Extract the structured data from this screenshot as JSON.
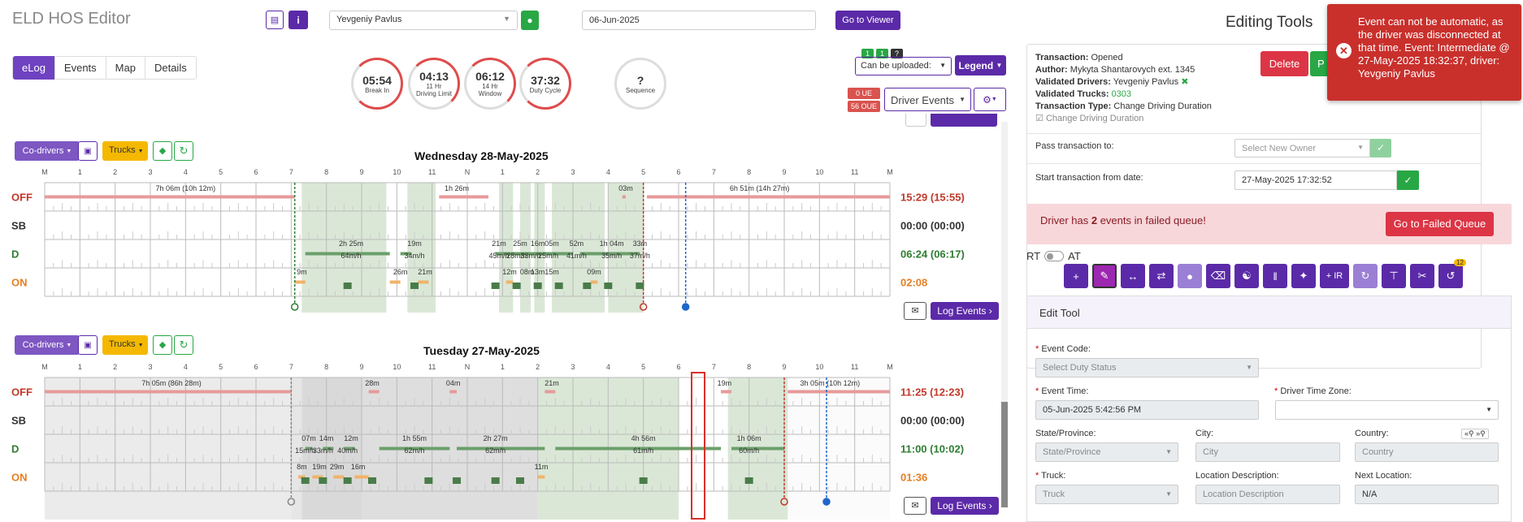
{
  "app_title": "ELD HOS Editor",
  "driver_select": "Yevgeniy Pavlus",
  "date_input": "06-Jun-2025",
  "go_to_viewer": "Go to Viewer",
  "tabs": [
    {
      "label": "eLog"
    },
    {
      "label": "Events"
    },
    {
      "label": "Map"
    },
    {
      "label": "Details"
    }
  ],
  "gauges": [
    {
      "value": "05:54",
      "label": "Break In",
      "label2": ""
    },
    {
      "value": "04:13",
      "label": "11 Hr",
      "label2": "Driving Limit"
    },
    {
      "value": "06:12",
      "label": "14 Hr",
      "label2": "Window"
    },
    {
      "value": "37:32",
      "label": "Duty Cycle",
      "label2": ""
    },
    {
      "value": "?",
      "label": "Sequence",
      "label2": ""
    }
  ],
  "upload_badges": [
    "1",
    "1",
    "?"
  ],
  "can_be_uploaded": "Can be uploaded:",
  "legend": "Legend",
  "ue_badge": "0 UE",
  "oue_badge": "56 OUE",
  "driver_events": "Driver Events",
  "co_drivers": "Co-drivers",
  "trucks": "Trucks",
  "log_events": "Log Events",
  "hour_labels": [
    "M",
    "1",
    "2",
    "3",
    "4",
    "5",
    "6",
    "7",
    "8",
    "9",
    "10",
    "11",
    "N",
    "1",
    "2",
    "3",
    "4",
    "5",
    "6",
    "7",
    "8",
    "9",
    "10",
    "11",
    "M"
  ],
  "status_labels": [
    "OFF",
    "SB",
    "D",
    "ON"
  ],
  "day1": {
    "title": "Wednesday 28-May-2025",
    "totals": [
      "15:29 (15:55)",
      "00:00 (00:00)",
      "06:24 (06:17)",
      "02:08"
    ],
    "annotations": [
      {
        "t": "7h 06m (10h 12m)",
        "h": 4.0,
        "r": 0
      },
      {
        "t": "1h 26m",
        "h": 11.7,
        "r": 0
      },
      {
        "t": "03m",
        "h": 16.5,
        "r": 0
      },
      {
        "t": "6h 51m (14h 27m)",
        "h": 20.3,
        "r": 0
      },
      {
        "t": "2h 25m",
        "h": 8.7,
        "r": 2
      },
      {
        "t": "64m/h",
        "h": 8.7,
        "r": 2.5
      },
      {
        "t": "19m",
        "h": 10.5,
        "r": 2
      },
      {
        "t": "34m/h",
        "h": 10.5,
        "r": 2.5
      },
      {
        "t": "21m",
        "h": 12.9,
        "r": 2
      },
      {
        "t": "25m",
        "h": 13.5,
        "r": 2
      },
      {
        "t": "16m",
        "h": 14.0,
        "r": 2
      },
      {
        "t": "05m",
        "h": 14.4,
        "r": 2
      },
      {
        "t": "52m",
        "h": 15.1,
        "r": 2
      },
      {
        "t": "1h 04m",
        "h": 16.1,
        "r": 2
      },
      {
        "t": "33m",
        "h": 16.9,
        "r": 2
      },
      {
        "t": "45m/h",
        "h": 12.9,
        "r": 2.5
      },
      {
        "t": "28m/h",
        "h": 13.4,
        "r": 2.5
      },
      {
        "t": "33m/h",
        "h": 13.8,
        "r": 2.5
      },
      {
        "t": "25m/h",
        "h": 14.3,
        "r": 2.5
      },
      {
        "t": "41m/h",
        "h": 15.1,
        "r": 2.5
      },
      {
        "t": "35m/h",
        "h": 16.1,
        "r": 2.5
      },
      {
        "t": "37m/h",
        "h": 16.9,
        "r": 2.5
      },
      {
        "t": "9m",
        "h": 7.3,
        "r": 3.2
      },
      {
        "t": "26m",
        "h": 10.1,
        "r": 3.2
      },
      {
        "t": "21m",
        "h": 10.8,
        "r": 3.2
      },
      {
        "t": "12m",
        "h": 13.2,
        "r": 3.2
      },
      {
        "t": "08m",
        "h": 13.7,
        "r": 3.2
      },
      {
        "t": "13m",
        "h": 14.0,
        "r": 3.2
      },
      {
        "t": "15m",
        "h": 14.4,
        "r": 3.2
      },
      {
        "t": "09m",
        "h": 15.6,
        "r": 3.2
      }
    ]
  },
  "day2": {
    "title": "Tuesday 27-May-2025",
    "totals": [
      "11:25 (12:23)",
      "00:00 (00:00)",
      "11:00 (10:02)",
      "01:36"
    ],
    "annotations": [
      {
        "t": "7h 05m (86h 28m)",
        "h": 3.6,
        "r": 0
      },
      {
        "t": "28m",
        "h": 9.3,
        "r": 0
      },
      {
        "t": "04m",
        "h": 11.6,
        "r": 0
      },
      {
        "t": "21m",
        "h": 14.4,
        "r": 0
      },
      {
        "t": "19m",
        "h": 19.3,
        "r": 0
      },
      {
        "t": "3h 05m (10h 12m)",
        "h": 22.3,
        "r": 0
      },
      {
        "t": "07m",
        "h": 7.5,
        "r": 2
      },
      {
        "t": "14m",
        "h": 8.0,
        "r": 2
      },
      {
        "t": "12m",
        "h": 8.7,
        "r": 2
      },
      {
        "t": "1h 55m",
        "h": 10.5,
        "r": 2
      },
      {
        "t": "2h 27m",
        "h": 12.8,
        "r": 2
      },
      {
        "t": "4h 56m",
        "h": 17.0,
        "r": 2
      },
      {
        "t": "1h 06m",
        "h": 20.0,
        "r": 2
      },
      {
        "t": "15m/h",
        "h": 7.4,
        "r": 2.5
      },
      {
        "t": "33m/h",
        "h": 7.9,
        "r": 2.5
      },
      {
        "t": "40m/h",
        "h": 8.6,
        "r": 2.5
      },
      {
        "t": "62m/h",
        "h": 10.5,
        "r": 2.5
      },
      {
        "t": "62m/h",
        "h": 12.8,
        "r": 2.5
      },
      {
        "t": "61m/h",
        "h": 17.0,
        "r": 2.5
      },
      {
        "t": "60m/h",
        "h": 20.0,
        "r": 2.5
      },
      {
        "t": "8m",
        "h": 7.3,
        "r": 3.2
      },
      {
        "t": "19m",
        "h": 7.8,
        "r": 3.2
      },
      {
        "t": "29m",
        "h": 8.3,
        "r": 3.2
      },
      {
        "t": "16m",
        "h": 8.9,
        "r": 3.2
      },
      {
        "t": "11m",
        "h": 14.1,
        "r": 3.2
      }
    ]
  },
  "editing_tools_title": "Editing Tools",
  "transaction": {
    "transaction_label": "Transaction:",
    "transaction_value": "Opened",
    "author_label": "Author:",
    "author_value": "Mykyta Shantarovych ext. 1345",
    "drivers_label": "Validated Drivers:",
    "drivers_value": "Yevgeniy Pavlus",
    "trucks_label": "Validated Trucks:",
    "trucks_value": "0303",
    "type_label": "Transaction Type:",
    "type_value": "Change Driving Duration",
    "checkbox_label": "Change Driving Duration"
  },
  "delete_button": "Delete",
  "publish_button_partial": "P",
  "pass_transaction_label": "Pass transaction to:",
  "select_new_owner": "Select New Owner",
  "start_from_label": "Start transaction from date:",
  "start_from_value": "27-May-2025 17:32:52",
  "failed_queue": {
    "pre": "Driver has ",
    "count": "2",
    "post": " events in failed queue!",
    "button": "Go to Failed Queue"
  },
  "rt_label": "RT",
  "at_label": "AT",
  "toolbar_badge": "12",
  "ir_label": "+ IR",
  "edit_tool_title": "Edit Tool",
  "form": {
    "event_code_label": "Event Code:",
    "event_code_placeholder": "Select Duty Status",
    "event_time_label": "Event Time:",
    "event_time_value": "05-Jun-2025 5:42:56 PM",
    "tz_label": "Driver Time Zone:",
    "state_label": "State/Province:",
    "state_placeholder": "State/Province",
    "city_label": "City:",
    "city_placeholder": "City",
    "country_label": "Country:",
    "country_placeholder": "Country",
    "truck_label": "Truck:",
    "truck_placeholder": "Truck",
    "locdesc_label": "Location Description:",
    "locdesc_placeholder": "Location Description",
    "nextloc_label": "Next Location:",
    "nextloc_value": "N/A"
  },
  "toast": "Event can not be automatic, as the driver was disconnected at that time. Event: Intermediate @ 27-May-2025 18:32:37, driver: Yevgeniy Pavlus",
  "colors": {
    "purple": "#5b2aa8",
    "green": "#28a745",
    "red": "#d9534f",
    "toast": "#c9302c"
  }
}
